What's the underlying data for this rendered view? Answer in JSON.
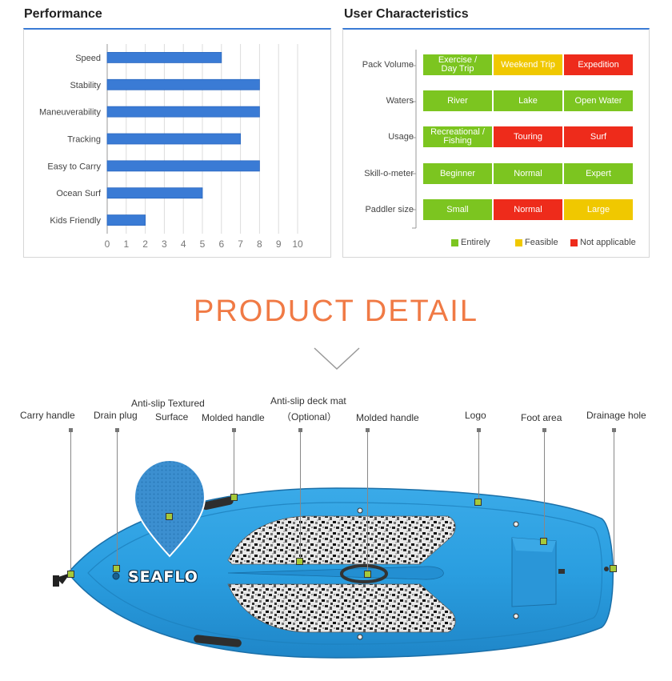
{
  "performance": {
    "title": "Performance",
    "chart_data": {
      "type": "bar",
      "orientation": "horizontal",
      "categories": [
        "Speed",
        "Stability",
        "Maneuverability",
        "Tracking",
        "Easy to Carry",
        "Ocean Surf",
        "Kids Friendly"
      ],
      "values": [
        6,
        8,
        8,
        7,
        8,
        5,
        2
      ],
      "xlim": [
        0,
        10
      ],
      "xticks": [
        "0",
        "1",
        "2",
        "3",
        "4",
        "5",
        "6",
        "7",
        "8",
        "9",
        "10"
      ],
      "grid": true,
      "color": "#3a7bd5"
    }
  },
  "user_characteristics": {
    "title": "User Characteristics",
    "rows": [
      {
        "label": "Pack Volume",
        "cells": [
          {
            "text": "Exercise / Day Trip",
            "color": "green"
          },
          {
            "text": "Weekend Trip",
            "color": "yellow"
          },
          {
            "text": "Expedition",
            "color": "red"
          }
        ]
      },
      {
        "label": "Waters",
        "cells": [
          {
            "text": "River",
            "color": "green"
          },
          {
            "text": "Lake",
            "color": "green"
          },
          {
            "text": "Open Water",
            "color": "green"
          }
        ]
      },
      {
        "label": "Usage",
        "cells": [
          {
            "text": "Recreational / Fishing",
            "color": "green"
          },
          {
            "text": "Touring",
            "color": "red"
          },
          {
            "text": "Surf",
            "color": "red"
          }
        ]
      },
      {
        "label": "Skill-o-meter",
        "cells": [
          {
            "text": "Beginner",
            "color": "green"
          },
          {
            "text": "Normal",
            "color": "green"
          },
          {
            "text": "Expert",
            "color": "green"
          }
        ]
      },
      {
        "label": "Paddler size",
        "cells": [
          {
            "text": "Small",
            "color": "green"
          },
          {
            "text": "Normal",
            "color": "red"
          },
          {
            "text": "Large",
            "color": "yellow"
          }
        ]
      }
    ],
    "legend": [
      {
        "label": "Entirely",
        "color": "#7cc520"
      },
      {
        "label": "Feasible",
        "color": "#f0c800"
      },
      {
        "label": "Not applicable",
        "color": "#ee2b1b"
      }
    ]
  },
  "product_detail": {
    "title": "PRODUCT DETAIL",
    "brand_logo": "SEAFLO",
    "callouts": {
      "carry_handle": "Carry handle",
      "drain_plug": "Drain plug",
      "anti_slip_surface_1": "Anti-slip Textured",
      "anti_slip_surface_2": "Surface",
      "molded_handle_1": "Molded handle",
      "deck_mat_1": "Anti-slip deck mat",
      "deck_mat_2": "（Optional）",
      "molded_handle_2": "Molded handle",
      "logo": "Logo",
      "foot_area": "Foot area",
      "drainage_hole": "Drainage hole"
    }
  },
  "colors": {
    "accent_blue": "#3a7bd5",
    "title_orange": "#f07a45",
    "board_blue": "#2a9ee0",
    "green": "#7cc520",
    "yellow": "#f0c800",
    "red": "#ee2b1b"
  }
}
